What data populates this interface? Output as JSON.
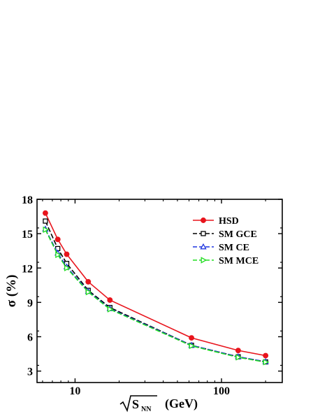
{
  "chart_data": {
    "type": "line",
    "title": "",
    "xlabel": "(GeV)",
    "xlabel_radical": "S",
    "xlabel_subscript": "NN",
    "ylabel": "σ (%)",
    "x_scale": "log",
    "xlim": [
      5.5,
      260
    ],
    "ylim": [
      2,
      18
    ],
    "x_major_ticks": [
      10,
      100
    ],
    "x_tick_labels": [
      "10",
      "100"
    ],
    "y_ticks": [
      3,
      6,
      9,
      12,
      15,
      18
    ],
    "y_tick_labels": [
      "3",
      "6",
      "9",
      "12",
      "15",
      "18"
    ],
    "grid": false,
    "legend_position": "top-right",
    "series": [
      {
        "name": "HSD",
        "color": "#e8141c",
        "line_style": "solid",
        "marker": "filled-circle",
        "x": [
          6.27,
          7.62,
          8.77,
          12.3,
          17.3,
          62.4,
          130,
          200
        ],
        "y": [
          16.8,
          14.5,
          13.2,
          10.8,
          9.2,
          5.9,
          4.8,
          4.35
        ]
      },
      {
        "name": "SM GCE",
        "color": "#000000",
        "line_style": "dashed",
        "marker": "open-square",
        "x": [
          6.27,
          7.62,
          8.77,
          12.3,
          17.3,
          62.4,
          130,
          200
        ],
        "y": [
          16.1,
          13.7,
          12.4,
          10.05,
          8.55,
          5.25,
          4.25,
          3.8
        ]
      },
      {
        "name": "SM CE",
        "color": "#1f35e0",
        "line_style": "dashed",
        "marker": "open-triangle",
        "x": [
          6.27,
          7.62,
          8.77,
          12.3,
          17.3,
          62.4,
          130,
          200
        ],
        "y": [
          15.4,
          13.3,
          12.1,
          9.95,
          8.45,
          5.25,
          4.25,
          3.82
        ]
      },
      {
        "name": "SM MCE",
        "color": "#22dd22",
        "line_style": "dashed",
        "marker": "open-right-triangle",
        "x": [
          6.27,
          7.62,
          8.77,
          12.3,
          17.3,
          62.4,
          130,
          200
        ],
        "y": [
          15.35,
          13.15,
          12.0,
          9.9,
          8.4,
          5.2,
          4.2,
          3.78
        ]
      }
    ]
  }
}
